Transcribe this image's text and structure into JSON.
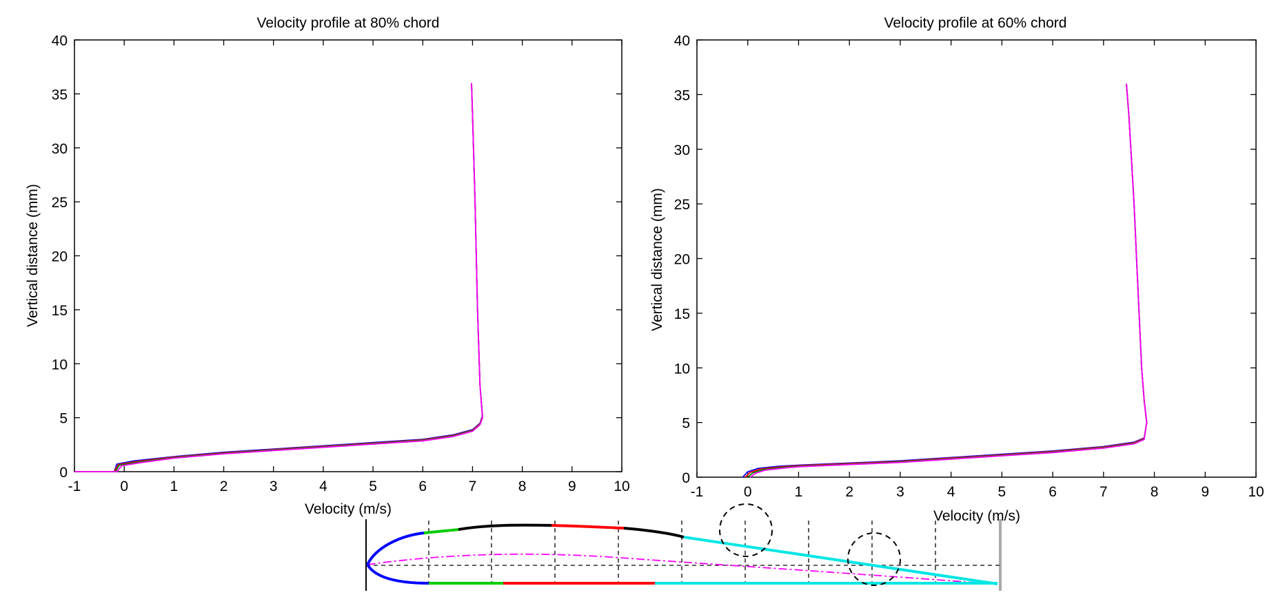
{
  "chart_data": [
    {
      "type": "line",
      "title": "Velocity profile at 80% chord",
      "xlabel": "Velocity (m/s)",
      "ylabel": "Vertical distance (mm)",
      "xlim": [
        -1,
        10
      ],
      "ylim": [
        0,
        40
      ],
      "xticks": [
        -1,
        0,
        1,
        2,
        3,
        4,
        5,
        6,
        7,
        8,
        9,
        10
      ],
      "yticks": [
        0,
        5,
        10,
        15,
        20,
        25,
        30,
        35,
        40
      ],
      "grid": false,
      "series": [
        {
          "color": "#0000ff",
          "x": [
            -1,
            -0.2,
            -0.15,
            0.2,
            1,
            2,
            3,
            4,
            5,
            6,
            6.6,
            7.0,
            7.15,
            7.2,
            7.15,
            7.1,
            7.05,
            7.0,
            6.98
          ],
          "y": [
            0,
            0,
            0.7,
            1.0,
            1.4,
            1.8,
            2.1,
            2.4,
            2.7,
            3.0,
            3.4,
            3.9,
            4.5,
            5.2,
            8,
            15,
            25,
            33,
            36
          ]
        },
        {
          "color": "#ff0000",
          "x": [
            -1,
            -0.2,
            -0.12,
            0.25,
            1,
            2,
            3,
            4,
            5,
            6,
            6.6,
            7.0,
            7.15,
            7.2,
            7.15,
            7.1,
            7.05,
            7.0,
            6.98
          ],
          "y": [
            0,
            0,
            0.65,
            0.95,
            1.35,
            1.75,
            2.05,
            2.35,
            2.65,
            2.95,
            3.35,
            3.85,
            4.45,
            5.1,
            8,
            15,
            25,
            33,
            36
          ]
        },
        {
          "color": "#008000",
          "x": [
            -1,
            -0.18,
            -0.1,
            0.3,
            1,
            2,
            3,
            4,
            5,
            6,
            6.6,
            7.0,
            7.15,
            7.2,
            7.15,
            7.1,
            7.05,
            7.0,
            6.98
          ],
          "y": [
            0,
            0,
            0.6,
            0.9,
            1.3,
            1.7,
            2.0,
            2.3,
            2.6,
            2.9,
            3.3,
            3.8,
            4.4,
            5.0,
            8,
            15,
            25,
            33,
            36
          ]
        },
        {
          "color": "#ff00ff",
          "x": [
            -1,
            -0.15,
            -0.05,
            0.35,
            1,
            2,
            3,
            4,
            5,
            6,
            6.6,
            7.0,
            7.15,
            7.2,
            7.15,
            7.1,
            7.05,
            7.0,
            6.98
          ],
          "y": [
            0,
            0,
            0.55,
            0.85,
            1.25,
            1.65,
            1.95,
            2.25,
            2.55,
            2.85,
            3.25,
            3.75,
            4.35,
            4.95,
            8,
            15,
            25,
            33,
            36
          ]
        }
      ]
    },
    {
      "type": "line",
      "title": "Velocity profile at 60% chord",
      "xlabel": "Velocity (m/s)",
      "ylabel": "Vertical distance (mm)",
      "xlim": [
        -1,
        10
      ],
      "ylim": [
        0,
        40
      ],
      "xticks": [
        -1,
        0,
        1,
        2,
        3,
        4,
        5,
        6,
        7,
        8,
        9,
        10
      ],
      "yticks": [
        0,
        5,
        10,
        15,
        20,
        25,
        30,
        35,
        40
      ],
      "grid": false,
      "series": [
        {
          "color": "#0000ff",
          "x": [
            -0.1,
            0.0,
            0.2,
            0.6,
            1,
            2,
            3,
            4,
            5,
            6,
            7,
            7.6,
            7.8,
            7.85,
            7.8,
            7.75,
            7.7,
            7.65,
            7.6,
            7.5,
            7.45
          ],
          "y": [
            0,
            0.5,
            0.8,
            1.0,
            1.1,
            1.3,
            1.5,
            1.8,
            2.1,
            2.4,
            2.8,
            3.2,
            3.6,
            5,
            7,
            10,
            15,
            20,
            25,
            33,
            36
          ]
        },
        {
          "color": "#ff0000",
          "x": [
            -0.05,
            0.05,
            0.25,
            0.65,
            1,
            2,
            3,
            4,
            5,
            6,
            7,
            7.6,
            7.8,
            7.85,
            7.8,
            7.75,
            7.7,
            7.65,
            7.6,
            7.5,
            7.45
          ],
          "y": [
            0,
            0.45,
            0.75,
            0.95,
            1.05,
            1.25,
            1.45,
            1.75,
            2.05,
            2.35,
            2.75,
            3.15,
            3.55,
            5,
            7,
            10,
            15,
            20,
            25,
            33,
            36
          ]
        },
        {
          "color": "#008000",
          "x": [
            0.0,
            0.1,
            0.3,
            0.7,
            1,
            2,
            3,
            4,
            5,
            6,
            7,
            7.6,
            7.8,
            7.85,
            7.8,
            7.75,
            7.7,
            7.65,
            7.6,
            7.5,
            7.45
          ],
          "y": [
            0,
            0.4,
            0.7,
            0.9,
            1.0,
            1.2,
            1.4,
            1.7,
            2.0,
            2.3,
            2.7,
            3.1,
            3.5,
            5,
            7,
            10,
            15,
            20,
            25,
            33,
            36
          ]
        },
        {
          "color": "#ff00ff",
          "x": [
            0.05,
            0.15,
            0.35,
            0.75,
            1,
            2,
            3,
            4,
            5,
            6,
            7,
            7.6,
            7.8,
            7.85,
            7.8,
            7.75,
            7.7,
            7.65,
            7.6,
            7.5,
            7.45
          ],
          "y": [
            0,
            0.35,
            0.65,
            0.85,
            0.95,
            1.15,
            1.35,
            1.65,
            1.95,
            2.25,
            2.65,
            3.05,
            3.45,
            5,
            7,
            10,
            15,
            20,
            25,
            33,
            36
          ]
        }
      ]
    }
  ]
}
